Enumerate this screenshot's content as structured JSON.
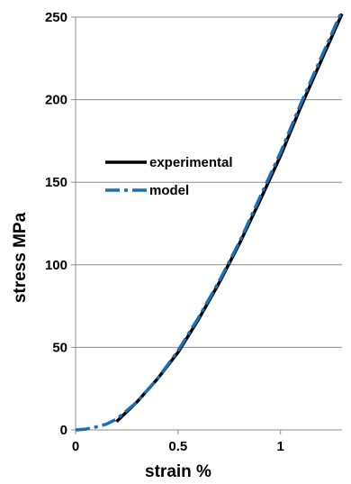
{
  "chart_data": {
    "type": "line",
    "title": "",
    "xlabel": "strain %",
    "ylabel": "stress MPa",
    "xlim": [
      0,
      1.3
    ],
    "ylim": [
      0,
      250
    ],
    "x_ticks": [
      0,
      0.5,
      1
    ],
    "x_tick_labels": [
      "0",
      "0.5",
      "1"
    ],
    "y_ticks": [
      0,
      50,
      100,
      150,
      200,
      250
    ],
    "y_tick_labels": [
      "0",
      "50",
      "100",
      "150",
      "200",
      "250"
    ],
    "grid": "horizontal",
    "legend_position": "center-left",
    "series": [
      {
        "name": "experimental",
        "color": "#000000",
        "style": "solid",
        "x": [
          0.2,
          0.3,
          0.4,
          0.5,
          0.6,
          0.7,
          0.8,
          0.9,
          1.0,
          1.1,
          1.2,
          1.3
        ],
        "y": [
          5,
          17,
          31,
          47,
          67,
          89,
          113,
          139,
          166,
          196,
          224,
          252
        ]
      },
      {
        "name": "model",
        "color": "#1a6fb5",
        "style": "dash",
        "x": [
          0.0,
          0.05,
          0.1,
          0.15,
          0.2,
          0.3,
          0.4,
          0.5,
          0.6,
          0.7,
          0.8,
          0.9,
          1.0,
          1.1,
          1.2,
          1.3
        ],
        "y": [
          0,
          0.5,
          1.8,
          3.5,
          6.5,
          17,
          31,
          48,
          68,
          90,
          114,
          141,
          168,
          198,
          226,
          254
        ]
      }
    ]
  }
}
